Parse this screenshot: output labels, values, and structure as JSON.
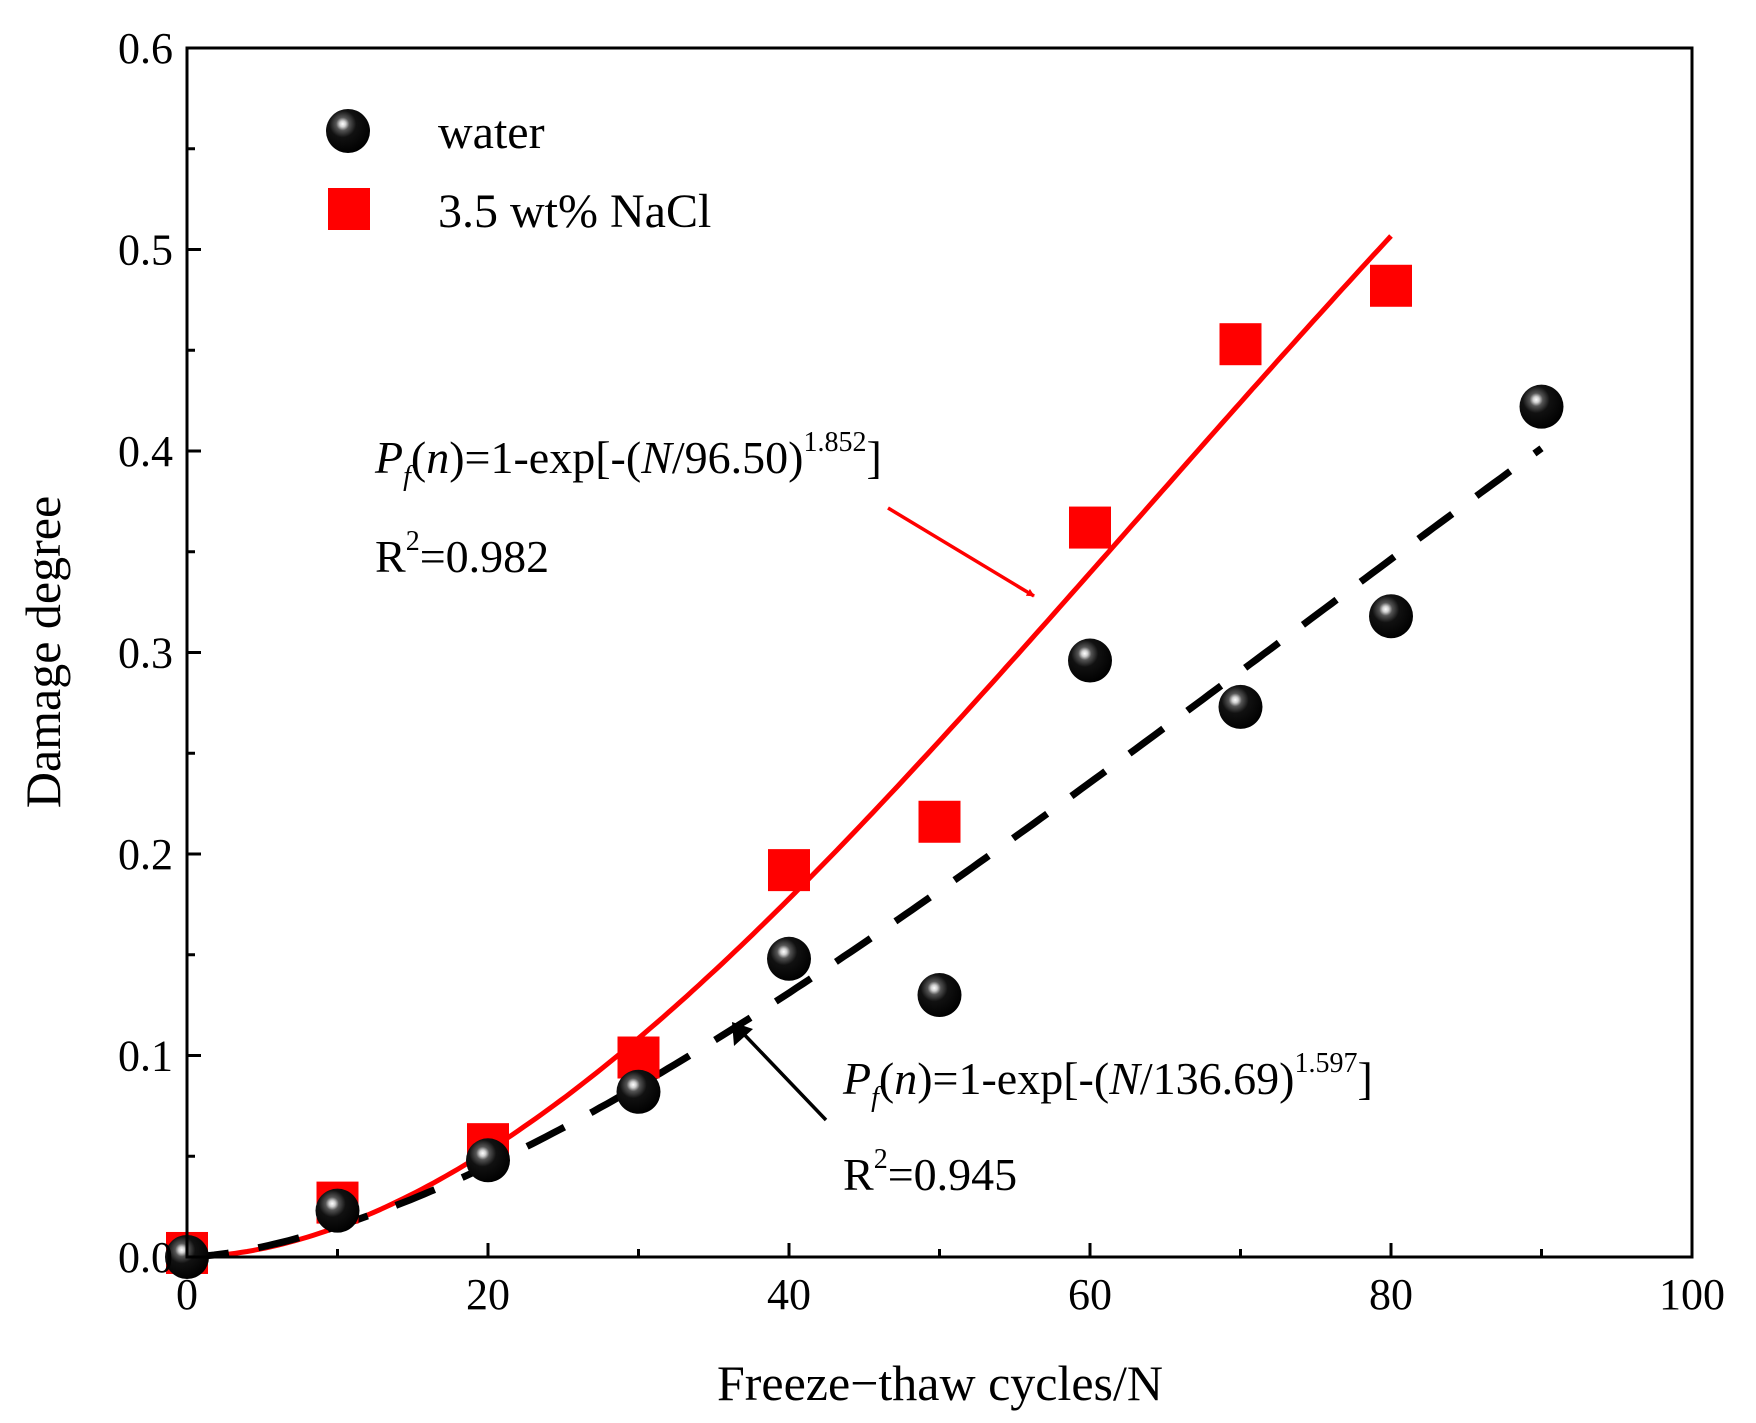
{
  "chart_data": {
    "type": "scatter",
    "xlabel": "Freeze−thaw cycles/N",
    "ylabel": "Damage degree",
    "xlim": [
      0,
      100
    ],
    "ylim": [
      0,
      0.6
    ],
    "xticks": [
      "0",
      "20",
      "40",
      "60",
      "80",
      "100"
    ],
    "yticks": [
      "0.0",
      "0.1",
      "0.2",
      "0.3",
      "0.4",
      "0.5",
      "0.6"
    ],
    "grid": false,
    "legend_position": "top-left",
    "series": [
      {
        "name": "water",
        "marker": "sphere",
        "color": "#000000",
        "points": [
          [
            0,
            0.0
          ],
          [
            10,
            0.023
          ],
          [
            20,
            0.048
          ],
          [
            30,
            0.082
          ],
          [
            40,
            0.148
          ],
          [
            50,
            0.13
          ],
          [
            60,
            0.296
          ],
          [
            70,
            0.273
          ],
          [
            80,
            0.318
          ],
          [
            90,
            0.422
          ]
        ]
      },
      {
        "name": "3.5 wt% NaCl",
        "marker": "square",
        "color": "#ff0000",
        "points": [
          [
            0,
            0.002
          ],
          [
            10,
            0.027
          ],
          [
            20,
            0.056
          ],
          [
            30,
            0.099
          ],
          [
            40,
            0.192
          ],
          [
            50,
            0.216
          ],
          [
            60,
            0.362
          ],
          [
            70,
            0.453
          ],
          [
            80,
            0.482
          ]
        ]
      }
    ],
    "fits": [
      {
        "series": "3.5 wt% NaCl",
        "style": "solid",
        "color": "#ff0000",
        "scale": 96.5,
        "shape": 1.852,
        "x_range": [
          0,
          80
        ],
        "equation_prefix": "=1-exp[-(",
        "equation_mid": "/96.50)",
        "equation_exp": "1.852",
        "equation_suffix": "]",
        "r2_value": "=0.982"
      },
      {
        "series": "water",
        "style": "dashed",
        "color": "#000000",
        "scale": 136.69,
        "shape": 1.597,
        "x_range": [
          0,
          90
        ],
        "equation_prefix": "=1-exp[-(",
        "equation_mid": "/136.69)",
        "equation_exp": "1.597",
        "equation_suffix": "]",
        "r2_value": "=0.945"
      }
    ],
    "annotation_symbols": {
      "P": "P",
      "f": "f",
      "n_open": "(",
      "n": "n",
      "n_close": ")",
      "N": "N",
      "R": "R",
      "two": "2"
    }
  }
}
